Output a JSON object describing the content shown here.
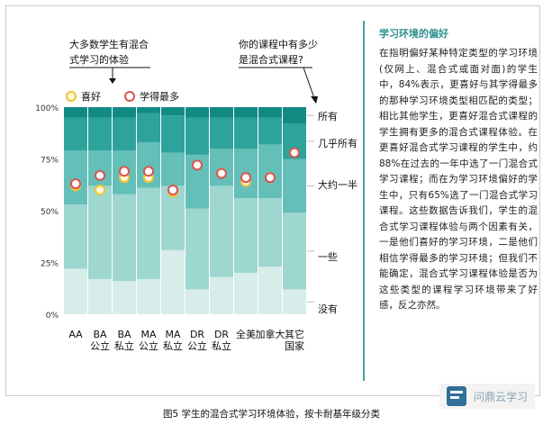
{
  "chart_data": {
    "type": "bar",
    "stacked": true,
    "percent": true,
    "categories": [
      [
        "AA"
      ],
      [
        "BA",
        "公立"
      ],
      [
        "BA",
        "私立"
      ],
      [
        "MA",
        "公立"
      ],
      [
        "MA",
        "私立"
      ],
      [
        "DR",
        "公立"
      ],
      [
        "DR",
        "私立"
      ],
      [
        "全美"
      ],
      [
        "加拿大"
      ],
      [
        "其它",
        "国家"
      ]
    ],
    "ylim": [
      0,
      100
    ],
    "y_ticks": [
      "0%",
      "25%",
      "50%",
      "75%",
      "100%"
    ],
    "stack_order": [
      "没有",
      "一些",
      "大约一半",
      "几乎所有",
      "所有"
    ],
    "series": [
      {
        "name": "没有",
        "color": "#d6ede9",
        "values": [
          22,
          17,
          16,
          17,
          31,
          12,
          18,
          20,
          23,
          12
        ]
      },
      {
        "name": "一些",
        "color": "#9ed6d0",
        "values": [
          31,
          45,
          42,
          44,
          31,
          39,
          44,
          36,
          33,
          37
        ]
      },
      {
        "name": "大约一半",
        "color": "#63bfb8",
        "values": [
          26,
          17,
          21,
          22,
          16,
          26,
          18,
          24,
          26,
          26
        ]
      },
      {
        "name": "几乎所有",
        "color": "#2ea39c",
        "values": [
          16,
          16,
          16,
          14,
          18,
          18,
          15,
          15,
          13,
          17
        ]
      },
      {
        "name": "所有",
        "color": "#128a84",
        "values": [
          5,
          5,
          5,
          3,
          4,
          5,
          5,
          5,
          5,
          8
        ]
      }
    ],
    "markers": [
      {
        "name": "喜好",
        "color": "#f1c232",
        "values": [
          62,
          60,
          66,
          66,
          59,
          72,
          68,
          64,
          66,
          78
        ]
      },
      {
        "name": "学得最多",
        "color": "#d9534f",
        "values": [
          63,
          67,
          69,
          69,
          60,
          72,
          68,
          66,
          66,
          78
        ]
      }
    ],
    "legend_position": "top-left",
    "right_labels": [
      "所有",
      "几乎所有",
      "大约一半",
      "一些",
      "没有"
    ],
    "annotations": [
      {
        "text": [
          "大多数学生有混合",
          "式学习的体验"
        ]
      },
      {
        "text": [
          "你的课程中有多少",
          "是混合式课程?"
        ]
      }
    ]
  },
  "sidebar": {
    "title": "学习环境的偏好",
    "body": "在指明偏好某种特定类型的学习环境(仅网上、混合式或面对面)的学生中，84%表示，更喜好与其学得最多的那种学习环境类型相匹配的类型；相比其他学生，更喜好混合式课程的学生拥有更多的混合式课程体验。在更喜好混合式学习课程的学生中，约88%在过去的一年中选了一门混合式学习课程；而在为学习环境偏好的学生中，只有65%选了一门混合式学习课程。这些数据告诉我们，学生的混合式学习课程体验与两个因素有关，一是他们喜好的学习环境，二是他们相信学得最多的学习环境；但我们不能确定，混合式学习课程体验是否为这些类型的课程学习环境带来了好感，反之亦然。"
  },
  "caption": "图5 学生的混合式学习环境体验，按卡耐基年级分类",
  "watermark": "问鼎云学习"
}
